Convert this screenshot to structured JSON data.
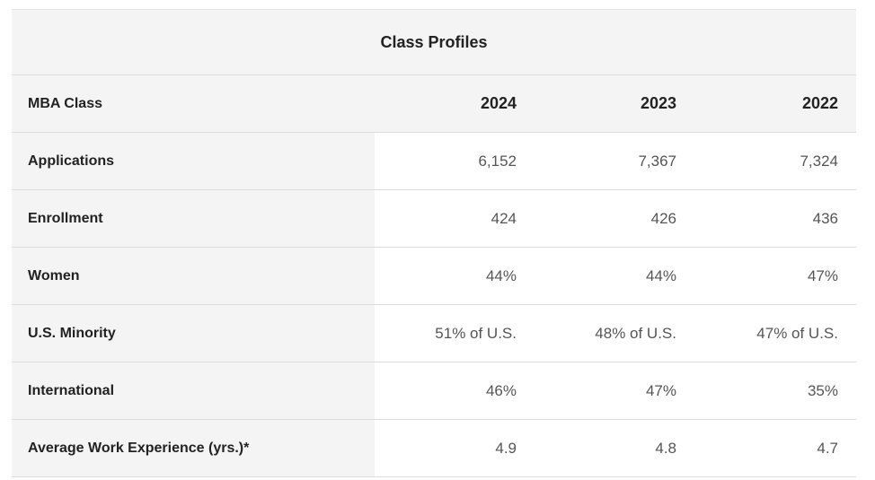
{
  "table": {
    "title": "Class Profiles",
    "header": {
      "label": "MBA Class",
      "years": [
        "2024",
        "2023",
        "2022"
      ]
    },
    "rows": [
      {
        "label": "Applications",
        "values": [
          "6,152",
          "7,367",
          "7,324"
        ]
      },
      {
        "label": "Enrollment",
        "values": [
          "424",
          "426",
          "436"
        ]
      },
      {
        "label": "Women",
        "values": [
          "44%",
          "44%",
          "47%"
        ]
      },
      {
        "label": "U.S. Minority",
        "values": [
          "51% of U.S.",
          "48% of U.S.",
          "47% of U.S."
        ]
      },
      {
        "label": "International",
        "values": [
          "46%",
          "47%",
          "35%"
        ]
      },
      {
        "label": "Average Work Experience (yrs.)*",
        "values": [
          "4.9",
          "4.8",
          "4.7"
        ]
      }
    ]
  }
}
